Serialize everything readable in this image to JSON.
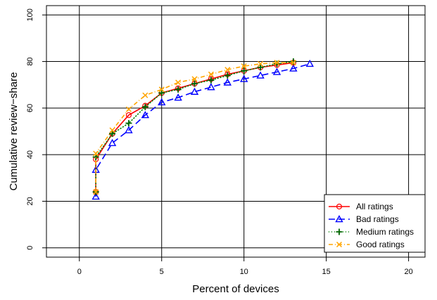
{
  "chart_data": {
    "type": "line",
    "title": "",
    "xlabel": "Percent of devices",
    "ylabel": "Cumulative review−share",
    "xlim": [
      -2,
      21
    ],
    "ylim": [
      -4,
      104
    ],
    "xticks": [
      0,
      5,
      10,
      15,
      20
    ],
    "yticks": [
      0,
      20,
      40,
      60,
      80,
      100
    ],
    "xtick_labels": [
      "0",
      "5",
      "10",
      "15",
      "20"
    ],
    "ytick_labels": [
      "0",
      "20",
      "40",
      "60",
      "80",
      "100"
    ],
    "grid": true,
    "legend_position": "bottom-right",
    "series": [
      {
        "name": "All ratings",
        "color": "#ff0000",
        "line_color": "#ff0000",
        "dash": "",
        "marker": "circle",
        "x": [
          1,
          1,
          2,
          3,
          4,
          5,
          6,
          7,
          8,
          9,
          10,
          11,
          12,
          13
        ],
        "y": [
          24,
          38,
          49,
          57,
          61,
          66.5,
          68.5,
          70.5,
          72.5,
          74.5,
          76,
          77.5,
          78.5,
          79.5
        ]
      },
      {
        "name": "Bad ratings",
        "color": "#0000ff",
        "line_color": "#0000ff",
        "dash": "9,5",
        "marker": "triangle",
        "x": [
          1,
          1,
          2,
          3,
          4,
          5,
          6,
          7,
          8,
          9,
          10,
          11,
          12,
          13,
          14
        ],
        "y": [
          22,
          33.5,
          45,
          50.5,
          57,
          62.5,
          64.5,
          67,
          69,
          71,
          72.5,
          74,
          75.5,
          77,
          79
        ]
      },
      {
        "name": "Medium ratings",
        "color": "#006400",
        "line_color": "#008000",
        "dash": "1,3",
        "marker": "plus",
        "x": [
          1,
          1,
          2,
          3,
          4,
          5,
          6,
          7,
          8,
          9,
          10,
          11,
          12,
          13
        ],
        "y": [
          24,
          39,
          49,
          53.5,
          60.5,
          66.5,
          68,
          70.5,
          72,
          74,
          76,
          77.5,
          79,
          80
        ]
      },
      {
        "name": "Good ratings",
        "color": "#ffa500",
        "line_color": "#ffa500",
        "dash": "6,3,1,3",
        "marker": "cross",
        "x": [
          1,
          1,
          2,
          3,
          4,
          5,
          6,
          7,
          8,
          9,
          10,
          11,
          12,
          13
        ],
        "y": [
          24,
          40.5,
          50.5,
          59.5,
          65.5,
          68,
          71,
          72.5,
          74.5,
          76.5,
          78,
          79,
          79.5,
          79.5
        ]
      }
    ]
  }
}
